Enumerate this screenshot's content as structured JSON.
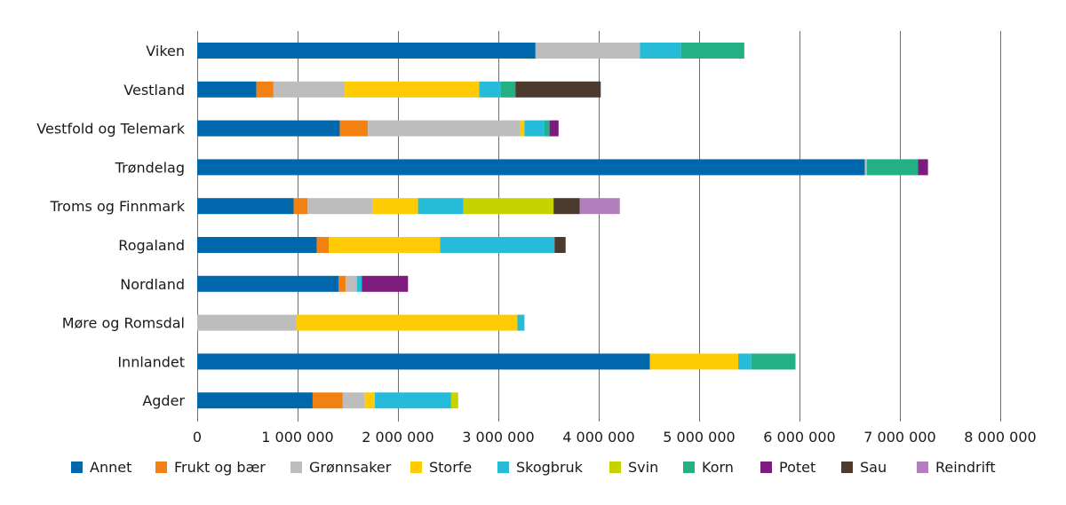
{
  "chart_data": {
    "type": "bar",
    "orientation": "horizontal",
    "stacked": true,
    "title": "",
    "xlabel": "",
    "ylabel": "",
    "xlim": [
      0,
      8000000
    ],
    "x_ticks": [
      0,
      1000000,
      2000000,
      3000000,
      4000000,
      5000000,
      6000000,
      7000000,
      8000000
    ],
    "x_tick_labels": [
      "0",
      "1 000 000",
      "2 000 000",
      "3 000 000",
      "4 000 000",
      "5 000 000",
      "6 000 000",
      "7 000 000",
      "8 000 000"
    ],
    "grid": "vertical",
    "legend_position": "bottom",
    "categories": [
      "Viken",
      "Vestland",
      "Vestfold og Telemark",
      "Trøndelag",
      "Troms og Finnmark",
      "Rogaland",
      "Nordland",
      "Møre og Romsdal",
      "Innlandet",
      "Agder"
    ],
    "series": [
      {
        "name": "Annet",
        "color": "#0067ac",
        "values": [
          3370000,
          590000,
          1420000,
          6650000,
          960000,
          1190000,
          1410000,
          0,
          4510000,
          1150000
        ]
      },
      {
        "name": "Frukt og bær",
        "color": "#f38013",
        "values": [
          0,
          170000,
          280000,
          0,
          140000,
          120000,
          70000,
          0,
          0,
          300000
        ]
      },
      {
        "name": "Grønnsaker",
        "color": "#bdbdbd",
        "values": [
          1040000,
          710000,
          1520000,
          20000,
          650000,
          0,
          110000,
          990000,
          0,
          220000
        ]
      },
      {
        "name": "Storfe",
        "color": "#ffcb05",
        "values": [
          0,
          1340000,
          40000,
          0,
          450000,
          1110000,
          0,
          2200000,
          880000,
          100000
        ]
      },
      {
        "name": "Skogbruk",
        "color": "#25bbd9",
        "values": [
          410000,
          210000,
          200000,
          0,
          450000,
          1140000,
          50000,
          70000,
          130000,
          760000
        ]
      },
      {
        "name": "Svin",
        "color": "#c7d300",
        "values": [
          0,
          0,
          0,
          0,
          900000,
          0,
          0,
          0,
          0,
          70000
        ]
      },
      {
        "name": "Korn",
        "color": "#24b085",
        "values": [
          630000,
          150000,
          50000,
          510000,
          0,
          0,
          0,
          0,
          440000,
          0
        ]
      },
      {
        "name": "Potet",
        "color": "#7e1c7e",
        "values": [
          0,
          0,
          90000,
          100000,
          0,
          0,
          460000,
          0,
          0,
          0
        ]
      },
      {
        "name": "Sau",
        "color": "#4d3a2f",
        "values": [
          0,
          850000,
          0,
          0,
          260000,
          110000,
          0,
          0,
          0,
          0
        ]
      },
      {
        "name": "Reindrift",
        "color": "#b07fbc",
        "values": [
          0,
          0,
          0,
          0,
          400000,
          0,
          0,
          0,
          0,
          0
        ]
      }
    ]
  }
}
